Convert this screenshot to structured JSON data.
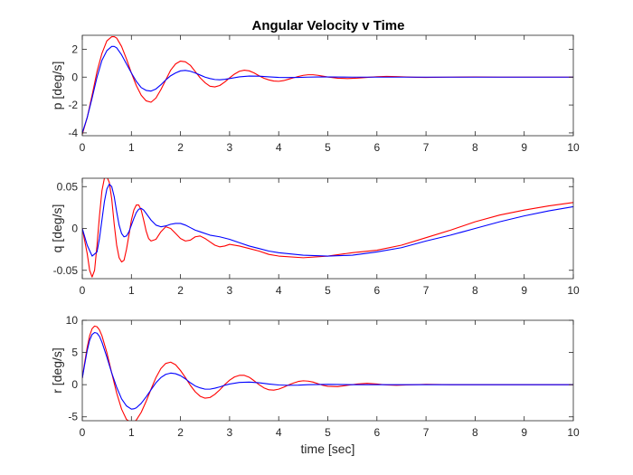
{
  "figure_title": "Angular Velocity v Time",
  "chart_data": [
    {
      "type": "line",
      "title": "Angular Velocity v Time",
      "xlabel": "",
      "ylabel": "p [deg/s]",
      "xlim": [
        0,
        10
      ],
      "ylim": [
        -4.2,
        3
      ],
      "xticks": [
        "0",
        "1",
        "2",
        "3",
        "4",
        "5",
        "6",
        "7",
        "8",
        "9",
        "10"
      ],
      "yticks": [
        {
          "v": -4,
          "label": "-4"
        },
        {
          "v": -2,
          "label": "-2"
        },
        {
          "v": 0,
          "label": "0"
        },
        {
          "v": 2,
          "label": "2"
        }
      ],
      "grid": false,
      "series": [
        {
          "color": "#ff0000",
          "x": [
            0,
            0.1,
            0.2,
            0.3,
            0.4,
            0.5,
            0.6,
            0.65,
            0.7,
            0.8,
            0.9,
            1.0,
            1.1,
            1.2,
            1.3,
            1.4,
            1.5,
            1.6,
            1.7,
            1.8,
            1.9,
            2.0,
            2.1,
            2.2,
            2.3,
            2.4,
            2.5,
            2.6,
            2.7,
            2.8,
            2.9,
            3.0,
            3.1,
            3.2,
            3.3,
            3.4,
            3.5,
            3.6,
            3.7,
            3.8,
            3.9,
            4.0,
            4.1,
            4.2,
            4.3,
            4.4,
            4.5,
            4.6,
            4.7,
            4.8,
            4.9,
            5.0,
            5.2,
            5.4,
            5.6,
            5.8,
            6.0,
            6.2,
            6.4,
            6.6,
            6.8,
            7.0,
            7.5,
            8.0,
            8.5,
            9.0,
            9.5,
            10.0
          ],
          "y": [
            -4.1,
            -2.9,
            -1.3,
            0.4,
            1.7,
            2.6,
            2.9,
            2.9,
            2.8,
            2.2,
            1.3,
            0.3,
            -0.6,
            -1.3,
            -1.7,
            -1.8,
            -1.5,
            -0.9,
            -0.2,
            0.5,
            0.95,
            1.15,
            1.1,
            0.85,
            0.4,
            -0.05,
            -0.4,
            -0.65,
            -0.7,
            -0.6,
            -0.35,
            -0.05,
            0.22,
            0.42,
            0.5,
            0.45,
            0.3,
            0.1,
            -0.08,
            -0.2,
            -0.28,
            -0.3,
            -0.25,
            -0.15,
            -0.05,
            0.05,
            0.13,
            0.17,
            0.17,
            0.13,
            0.07,
            0.01,
            -0.08,
            -0.1,
            -0.07,
            -0.02,
            0.03,
            0.05,
            0.04,
            0.01,
            -0.01,
            -0.02,
            0.0,
            0.01,
            0.0,
            0.0,
            0.0,
            0.0
          ]
        },
        {
          "color": "#0000ff",
          "x": [
            0,
            0.1,
            0.2,
            0.3,
            0.4,
            0.5,
            0.6,
            0.65,
            0.7,
            0.8,
            0.9,
            1.0,
            1.1,
            1.2,
            1.3,
            1.4,
            1.5,
            1.6,
            1.7,
            1.8,
            1.9,
            2.0,
            2.1,
            2.2,
            2.3,
            2.4,
            2.5,
            2.6,
            2.7,
            2.8,
            2.9,
            3.0,
            3.2,
            3.4,
            3.6,
            3.8,
            4.0,
            4.2,
            4.4,
            4.6,
            4.8,
            5.0,
            5.5,
            6.0,
            6.5,
            7.0,
            8.0,
            9.0,
            10.0
          ],
          "y": [
            -4.0,
            -2.9,
            -1.5,
            0.0,
            1.2,
            1.9,
            2.2,
            2.2,
            2.1,
            1.6,
            0.95,
            0.3,
            -0.3,
            -0.75,
            -0.95,
            -1.0,
            -0.85,
            -0.55,
            -0.2,
            0.1,
            0.3,
            0.45,
            0.48,
            0.42,
            0.3,
            0.15,
            0.0,
            -0.1,
            -0.17,
            -0.19,
            -0.16,
            -0.1,
            0.02,
            0.08,
            0.07,
            0.02,
            -0.02,
            -0.03,
            -0.02,
            0.0,
            0.01,
            0.01,
            0.0,
            0.0,
            0.0,
            0.0,
            0.0,
            0.0,
            0.0
          ]
        }
      ]
    },
    {
      "type": "line",
      "xlabel": "",
      "ylabel": "q [deg/s]",
      "xlim": [
        0,
        10
      ],
      "ylim": [
        -0.06,
        0.06
      ],
      "xticks": [
        "0",
        "1",
        "2",
        "3",
        "4",
        "5",
        "6",
        "7",
        "8",
        "9",
        "10"
      ],
      "yticks": [
        {
          "v": -0.05,
          "label": "-0.05"
        },
        {
          "v": 0,
          "label": "0"
        },
        {
          "v": 0.05,
          "label": "0.05"
        }
      ],
      "grid": false,
      "series": [
        {
          "color": "#ff0000",
          "x": [
            0,
            0.1,
            0.15,
            0.2,
            0.25,
            0.3,
            0.35,
            0.4,
            0.45,
            0.5,
            0.55,
            0.6,
            0.65,
            0.7,
            0.75,
            0.8,
            0.85,
            0.9,
            0.95,
            1.0,
            1.05,
            1.1,
            1.15,
            1.2,
            1.25,
            1.3,
            1.35,
            1.4,
            1.5,
            1.6,
            1.7,
            1.8,
            1.9,
            2.0,
            2.1,
            2.2,
            2.3,
            2.4,
            2.5,
            2.6,
            2.7,
            2.8,
            2.9,
            3.0,
            3.2,
            3.4,
            3.6,
            3.8,
            4.0,
            4.5,
            5.0,
            5.5,
            6.0,
            6.5,
            7.0,
            7.5,
            8.0,
            8.5,
            9.0,
            9.5,
            10.0
          ],
          "y": [
            0.0,
            -0.03,
            -0.05,
            -0.058,
            -0.05,
            -0.02,
            0.015,
            0.045,
            0.06,
            0.062,
            0.055,
            0.035,
            0.005,
            -0.02,
            -0.035,
            -0.04,
            -0.038,
            -0.025,
            -0.008,
            0.01,
            0.022,
            0.028,
            0.028,
            0.022,
            0.01,
            -0.003,
            -0.012,
            -0.015,
            -0.013,
            -0.004,
            0.002,
            0.0,
            -0.006,
            -0.012,
            -0.015,
            -0.014,
            -0.01,
            -0.009,
            -0.012,
            -0.016,
            -0.02,
            -0.022,
            -0.021,
            -0.019,
            -0.021,
            -0.024,
            -0.027,
            -0.031,
            -0.033,
            -0.035,
            -0.033,
            -0.029,
            -0.026,
            -0.02,
            -0.011,
            -0.002,
            0.008,
            0.016,
            0.022,
            0.027,
            0.031
          ]
        },
        {
          "color": "#0000ff",
          "x": [
            0,
            0.1,
            0.2,
            0.3,
            0.35,
            0.4,
            0.45,
            0.5,
            0.55,
            0.6,
            0.65,
            0.7,
            0.75,
            0.8,
            0.85,
            0.9,
            0.95,
            1.0,
            1.05,
            1.1,
            1.15,
            1.2,
            1.25,
            1.3,
            1.4,
            1.5,
            1.6,
            1.7,
            1.8,
            1.9,
            2.0,
            2.1,
            2.2,
            2.3,
            2.4,
            2.6,
            2.8,
            3.0,
            3.2,
            3.4,
            3.6,
            3.8,
            4.0,
            4.5,
            5.0,
            5.5,
            6.0,
            6.5,
            7.0,
            7.5,
            8.0,
            8.5,
            9.0,
            9.5,
            10.0
          ],
          "y": [
            0.0,
            -0.02,
            -0.033,
            -0.028,
            -0.012,
            0.01,
            0.032,
            0.047,
            0.053,
            0.05,
            0.038,
            0.02,
            0.004,
            -0.006,
            -0.01,
            -0.009,
            -0.004,
            0.004,
            0.012,
            0.019,
            0.023,
            0.024,
            0.022,
            0.018,
            0.01,
            0.004,
            0.002,
            0.003,
            0.005,
            0.006,
            0.006,
            0.004,
            0.001,
            -0.002,
            -0.004,
            -0.008,
            -0.01,
            -0.013,
            -0.017,
            -0.021,
            -0.024,
            -0.027,
            -0.029,
            -0.032,
            -0.033,
            -0.032,
            -0.028,
            -0.023,
            -0.015,
            -0.008,
            0.0,
            0.008,
            0.015,
            0.021,
            0.026
          ]
        }
      ]
    },
    {
      "type": "line",
      "xlabel": "time [sec]",
      "ylabel": "r [deg/s]",
      "xlim": [
        0,
        10
      ],
      "ylim": [
        -5.6,
        10
      ],
      "xticks": [
        "0",
        "1",
        "2",
        "3",
        "4",
        "5",
        "6",
        "7",
        "8",
        "9",
        "10"
      ],
      "yticks": [
        {
          "v": -5,
          "label": "-5"
        },
        {
          "v": 0,
          "label": "0"
        },
        {
          "v": 5,
          "label": "5"
        },
        {
          "v": 10,
          "label": "10"
        }
      ],
      "grid": false,
      "series": [
        {
          "color": "#ff0000",
          "x": [
            0,
            0.05,
            0.1,
            0.15,
            0.2,
            0.25,
            0.3,
            0.35,
            0.4,
            0.5,
            0.6,
            0.7,
            0.8,
            0.9,
            1.0,
            1.05,
            1.1,
            1.2,
            1.3,
            1.4,
            1.5,
            1.6,
            1.7,
            1.8,
            1.9,
            2.0,
            2.1,
            2.2,
            2.3,
            2.4,
            2.5,
            2.6,
            2.7,
            2.8,
            2.9,
            3.0,
            3.1,
            3.2,
            3.3,
            3.4,
            3.5,
            3.6,
            3.7,
            3.8,
            3.9,
            4.0,
            4.1,
            4.2,
            4.3,
            4.4,
            4.5,
            4.6,
            4.7,
            4.8,
            4.9,
            5.0,
            5.2,
            5.4,
            5.6,
            5.8,
            6.0,
            6.2,
            6.4,
            6.6,
            7.0,
            7.5,
            8.0,
            9.0,
            10.0
          ],
          "y": [
            1.0,
            3.5,
            5.8,
            7.6,
            8.7,
            9.1,
            9.0,
            8.5,
            7.6,
            5.0,
            1.8,
            -1.3,
            -3.8,
            -5.4,
            -5.9,
            -5.8,
            -5.5,
            -4.3,
            -2.6,
            -0.7,
            1.1,
            2.5,
            3.3,
            3.5,
            3.1,
            2.2,
            1.1,
            -0.1,
            -1.1,
            -1.8,
            -2.1,
            -2.0,
            -1.5,
            -0.8,
            0.0,
            0.7,
            1.2,
            1.45,
            1.45,
            1.15,
            0.6,
            0.0,
            -0.5,
            -0.8,
            -0.85,
            -0.7,
            -0.4,
            -0.05,
            0.25,
            0.5,
            0.6,
            0.55,
            0.4,
            0.15,
            -0.1,
            -0.25,
            -0.3,
            -0.1,
            0.1,
            0.2,
            0.1,
            -0.05,
            -0.1,
            -0.05,
            0.05,
            0.0,
            0.0,
            0.0,
            0.0
          ]
        },
        {
          "color": "#0000ff",
          "x": [
            0,
            0.05,
            0.1,
            0.15,
            0.2,
            0.25,
            0.3,
            0.35,
            0.4,
            0.5,
            0.6,
            0.7,
            0.8,
            0.9,
            1.0,
            1.05,
            1.1,
            1.2,
            1.3,
            1.4,
            1.5,
            1.6,
            1.7,
            1.8,
            1.9,
            2.0,
            2.1,
            2.2,
            2.3,
            2.4,
            2.5,
            2.6,
            2.7,
            2.8,
            2.9,
            3.0,
            3.2,
            3.4,
            3.6,
            3.8,
            4.0,
            4.2,
            4.4,
            4.6,
            5.0,
            5.5,
            6.0,
            7.0,
            8.0,
            9.0,
            10.0
          ],
          "y": [
            1.0,
            3.2,
            5.3,
            6.9,
            7.8,
            8.1,
            8.0,
            7.5,
            6.6,
            4.3,
            1.8,
            -0.4,
            -2.2,
            -3.3,
            -3.8,
            -3.75,
            -3.6,
            -2.9,
            -1.9,
            -0.8,
            0.3,
            1.1,
            1.6,
            1.8,
            1.7,
            1.4,
            0.9,
            0.3,
            -0.2,
            -0.5,
            -0.7,
            -0.7,
            -0.55,
            -0.35,
            -0.1,
            0.1,
            0.35,
            0.4,
            0.3,
            0.1,
            -0.05,
            -0.1,
            -0.08,
            0.0,
            0.05,
            0.0,
            0.0,
            0.0,
            0.0,
            0.0,
            0.0
          ]
        }
      ]
    }
  ]
}
